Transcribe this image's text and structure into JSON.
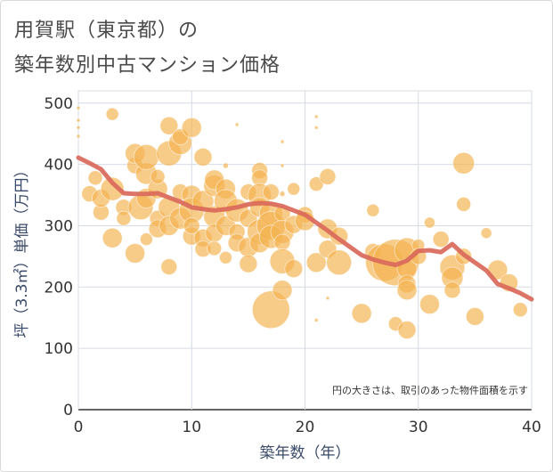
{
  "title": {
    "line1": "用賀駅（東京都）の",
    "line2": "築年数別中古マンション価格"
  },
  "chart_data": {
    "type": "scatter",
    "xlabel": "築年数（年）",
    "ylabel": "坪（3.3㎡）単価（万円）",
    "xlim": [
      0,
      40
    ],
    "ylim": [
      0,
      520
    ],
    "xticks": [
      0,
      10,
      20,
      30,
      40
    ],
    "yticks": [
      0,
      100,
      200,
      300,
      400,
      500
    ],
    "grid": true,
    "note": "円の大きさは、取引のあった物件面積を示す",
    "colors": {
      "bubble": "#f3b24f",
      "line": "#d9695a"
    },
    "points": [
      {
        "x": 0,
        "y": 492,
        "r": 2
      },
      {
        "x": 0,
        "y": 472,
        "r": 2
      },
      {
        "x": 0,
        "y": 460,
        "r": 2
      },
      {
        "x": 0,
        "y": 446,
        "r": 2
      },
      {
        "x": 3,
        "y": 482,
        "r": 7
      },
      {
        "x": 1,
        "y": 352,
        "r": 9
      },
      {
        "x": 1.5,
        "y": 378,
        "r": 8
      },
      {
        "x": 2,
        "y": 322,
        "r": 9
      },
      {
        "x": 2,
        "y": 345,
        "r": 10
      },
      {
        "x": 3,
        "y": 280,
        "r": 11
      },
      {
        "x": 3,
        "y": 360,
        "r": 13
      },
      {
        "x": 4,
        "y": 330,
        "r": 9
      },
      {
        "x": 4,
        "y": 312,
        "r": 8
      },
      {
        "x": 5,
        "y": 255,
        "r": 11
      },
      {
        "x": 5,
        "y": 398,
        "r": 9
      },
      {
        "x": 5,
        "y": 418,
        "r": 11
      },
      {
        "x": 5.5,
        "y": 330,
        "r": 14
      },
      {
        "x": 6,
        "y": 385,
        "r": 12
      },
      {
        "x": 6,
        "y": 412,
        "r": 14
      },
      {
        "x": 6,
        "y": 345,
        "r": 11
      },
      {
        "x": 6,
        "y": 278,
        "r": 7
      },
      {
        "x": 7,
        "y": 312,
        "r": 9
      },
      {
        "x": 7,
        "y": 295,
        "r": 10
      },
      {
        "x": 7,
        "y": 360,
        "r": 11
      },
      {
        "x": 7,
        "y": 380,
        "r": 8
      },
      {
        "x": 8,
        "y": 463,
        "r": 10
      },
      {
        "x": 8,
        "y": 418,
        "r": 14
      },
      {
        "x": 8,
        "y": 233,
        "r": 9
      },
      {
        "x": 8,
        "y": 330,
        "r": 12
      },
      {
        "x": 8,
        "y": 300,
        "r": 11
      },
      {
        "x": 9,
        "y": 435,
        "r": 13
      },
      {
        "x": 9,
        "y": 445,
        "r": 9
      },
      {
        "x": 9,
        "y": 312,
        "r": 12
      },
      {
        "x": 9,
        "y": 355,
        "r": 9
      },
      {
        "x": 10,
        "y": 460,
        "r": 11
      },
      {
        "x": 10,
        "y": 350,
        "r": 11
      },
      {
        "x": 10,
        "y": 325,
        "r": 14
      },
      {
        "x": 10,
        "y": 283,
        "r": 10
      },
      {
        "x": 10,
        "y": 300,
        "r": 9
      },
      {
        "x": 11,
        "y": 412,
        "r": 10
      },
      {
        "x": 11,
        "y": 340,
        "r": 12
      },
      {
        "x": 11,
        "y": 280,
        "r": 10
      },
      {
        "x": 11,
        "y": 262,
        "r": 9
      },
      {
        "x": 12,
        "y": 365,
        "r": 12
      },
      {
        "x": 12,
        "y": 375,
        "r": 11
      },
      {
        "x": 12,
        "y": 315,
        "r": 12
      },
      {
        "x": 12,
        "y": 288,
        "r": 10
      },
      {
        "x": 12,
        "y": 263,
        "r": 8
      },
      {
        "x": 13,
        "y": 398,
        "r": 3
      },
      {
        "x": 13,
        "y": 360,
        "r": 11
      },
      {
        "x": 13,
        "y": 340,
        "r": 13
      },
      {
        "x": 13,
        "y": 300,
        "r": 11
      },
      {
        "x": 13,
        "y": 248,
        "r": 7
      },
      {
        "x": 14,
        "y": 465,
        "r": 2
      },
      {
        "x": 14,
        "y": 325,
        "r": 13
      },
      {
        "x": 14,
        "y": 290,
        "r": 9
      },
      {
        "x": 14,
        "y": 272,
        "r": 10
      },
      {
        "x": 15,
        "y": 355,
        "r": 9
      },
      {
        "x": 15,
        "y": 312,
        "r": 10
      },
      {
        "x": 15,
        "y": 265,
        "r": 11
      },
      {
        "x": 15,
        "y": 238,
        "r": 10
      },
      {
        "x": 16,
        "y": 390,
        "r": 9
      },
      {
        "x": 16,
        "y": 378,
        "r": 9
      },
      {
        "x": 16,
        "y": 350,
        "r": 13
      },
      {
        "x": 16,
        "y": 330,
        "r": 11
      },
      {
        "x": 16,
        "y": 290,
        "r": 14
      },
      {
        "x": 16,
        "y": 272,
        "r": 11
      },
      {
        "x": 17,
        "y": 355,
        "r": 9
      },
      {
        "x": 17,
        "y": 320,
        "r": 13
      },
      {
        "x": 17,
        "y": 300,
        "r": 16
      },
      {
        "x": 17,
        "y": 282,
        "r": 13
      },
      {
        "x": 17,
        "y": 163,
        "r": 21
      },
      {
        "x": 18,
        "y": 437,
        "r": 2
      },
      {
        "x": 18,
        "y": 398,
        "r": 2
      },
      {
        "x": 18,
        "y": 352,
        "r": 3
      },
      {
        "x": 18,
        "y": 320,
        "r": 9
      },
      {
        "x": 18,
        "y": 290,
        "r": 13
      },
      {
        "x": 18,
        "y": 273,
        "r": 9
      },
      {
        "x": 18,
        "y": 242,
        "r": 14
      },
      {
        "x": 18,
        "y": 195,
        "r": 11
      },
      {
        "x": 19,
        "y": 360,
        "r": 7
      },
      {
        "x": 19,
        "y": 302,
        "r": 10
      },
      {
        "x": 19,
        "y": 230,
        "r": 10
      },
      {
        "x": 20,
        "y": 318,
        "r": 9
      },
      {
        "x": 20,
        "y": 308,
        "r": 11
      },
      {
        "x": 21,
        "y": 478,
        "r": 2
      },
      {
        "x": 21,
        "y": 460,
        "r": 2
      },
      {
        "x": 21,
        "y": 368,
        "r": 8
      },
      {
        "x": 21,
        "y": 240,
        "r": 11
      },
      {
        "x": 21,
        "y": 146,
        "r": 2
      },
      {
        "x": 22,
        "y": 380,
        "r": 9
      },
      {
        "x": 22,
        "y": 295,
        "r": 11
      },
      {
        "x": 22,
        "y": 262,
        "r": 10
      },
      {
        "x": 22,
        "y": 182,
        "r": 2
      },
      {
        "x": 23,
        "y": 283,
        "r": 10
      },
      {
        "x": 23,
        "y": 240,
        "r": 14
      },
      {
        "x": 25,
        "y": 157,
        "r": 11
      },
      {
        "x": 26,
        "y": 325,
        "r": 7
      },
      {
        "x": 26,
        "y": 258,
        "r": 9
      },
      {
        "x": 27,
        "y": 240,
        "r": 21
      },
      {
        "x": 28,
        "y": 240,
        "r": 26
      },
      {
        "x": 28,
        "y": 140,
        "r": 8
      },
      {
        "x": 29,
        "y": 260,
        "r": 14
      },
      {
        "x": 29,
        "y": 230,
        "r": 11
      },
      {
        "x": 29,
        "y": 205,
        "r": 10
      },
      {
        "x": 29,
        "y": 195,
        "r": 11
      },
      {
        "x": 29,
        "y": 130,
        "r": 10
      },
      {
        "x": 30,
        "y": 268,
        "r": 7
      },
      {
        "x": 30,
        "y": 250,
        "r": 9
      },
      {
        "x": 31,
        "y": 305,
        "r": 6
      },
      {
        "x": 31,
        "y": 172,
        "r": 11
      },
      {
        "x": 32,
        "y": 278,
        "r": 9
      },
      {
        "x": 33,
        "y": 232,
        "r": 14
      },
      {
        "x": 33,
        "y": 215,
        "r": 12
      },
      {
        "x": 33,
        "y": 195,
        "r": 9
      },
      {
        "x": 34,
        "y": 402,
        "r": 12
      },
      {
        "x": 34,
        "y": 335,
        "r": 8
      },
      {
        "x": 34,
        "y": 250,
        "r": 9
      },
      {
        "x": 35,
        "y": 152,
        "r": 10
      },
      {
        "x": 36,
        "y": 288,
        "r": 6
      },
      {
        "x": 37,
        "y": 228,
        "r": 11
      },
      {
        "x": 38,
        "y": 207,
        "r": 10
      },
      {
        "x": 39,
        "y": 163,
        "r": 8
      }
    ],
    "trend": {
      "x": [
        0,
        1,
        2,
        3,
        4,
        5,
        6,
        7,
        8,
        9,
        10,
        11,
        12,
        13,
        14,
        15,
        16,
        17,
        18,
        19,
        20,
        21,
        22,
        23,
        24,
        25,
        26,
        27,
        28,
        29,
        30,
        31,
        32,
        33,
        34,
        35,
        36,
        37,
        38,
        39,
        40
      ],
      "y": [
        411,
        402,
        392,
        370,
        353,
        352,
        352,
        353,
        346,
        339,
        330,
        327,
        325,
        327,
        330,
        335,
        337,
        336,
        332,
        325,
        318,
        305,
        292,
        278,
        265,
        252,
        245,
        240,
        236,
        243,
        259,
        260,
        257,
        270,
        253,
        240,
        227,
        205,
        198,
        190,
        180
      ]
    }
  }
}
